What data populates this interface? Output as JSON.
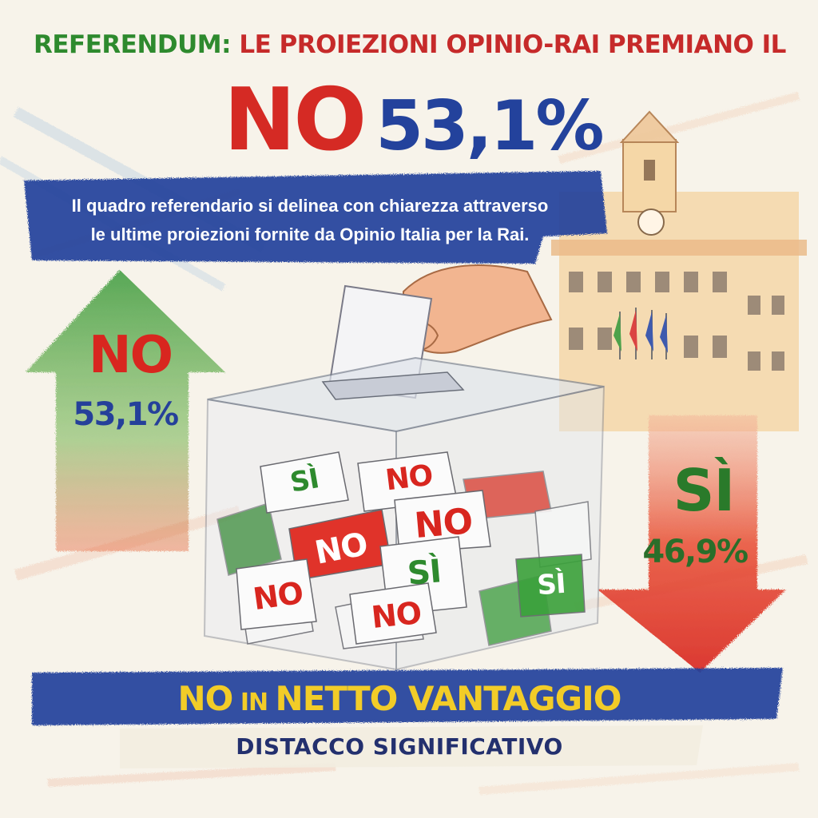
{
  "headline": {
    "part1": "REFERENDUM:",
    "part2": " LE PROIEZIONI OPINIO-RAI PREMIANO IL"
  },
  "big_result": {
    "option": "NO",
    "percent": "53,1%"
  },
  "description": {
    "line1": "Il quadro referendario si delinea con chiarezza attraverso",
    "line2": "le ultime proiezioni fornite da Opinio Italia per la Rai."
  },
  "left_arrow": {
    "option": "NO",
    "percent": "53,1%",
    "color": "#2e8a2e"
  },
  "right_arrow": {
    "option": "SÌ",
    "percent": "46,9%",
    "color": "#d8261f"
  },
  "ballots": {
    "si": "SÌ",
    "no": "NO"
  },
  "footer": {
    "no": "NO",
    "in": " IN ",
    "rest": "NETTO VANTAGGIO",
    "sub": "DISTACCO SIGNIFICATIVO"
  },
  "colors": {
    "red": "#d52a24",
    "blue": "#23429c",
    "green": "#2e8a2e",
    "yellow": "#f2cc28",
    "paper": "#f7f3ea"
  }
}
